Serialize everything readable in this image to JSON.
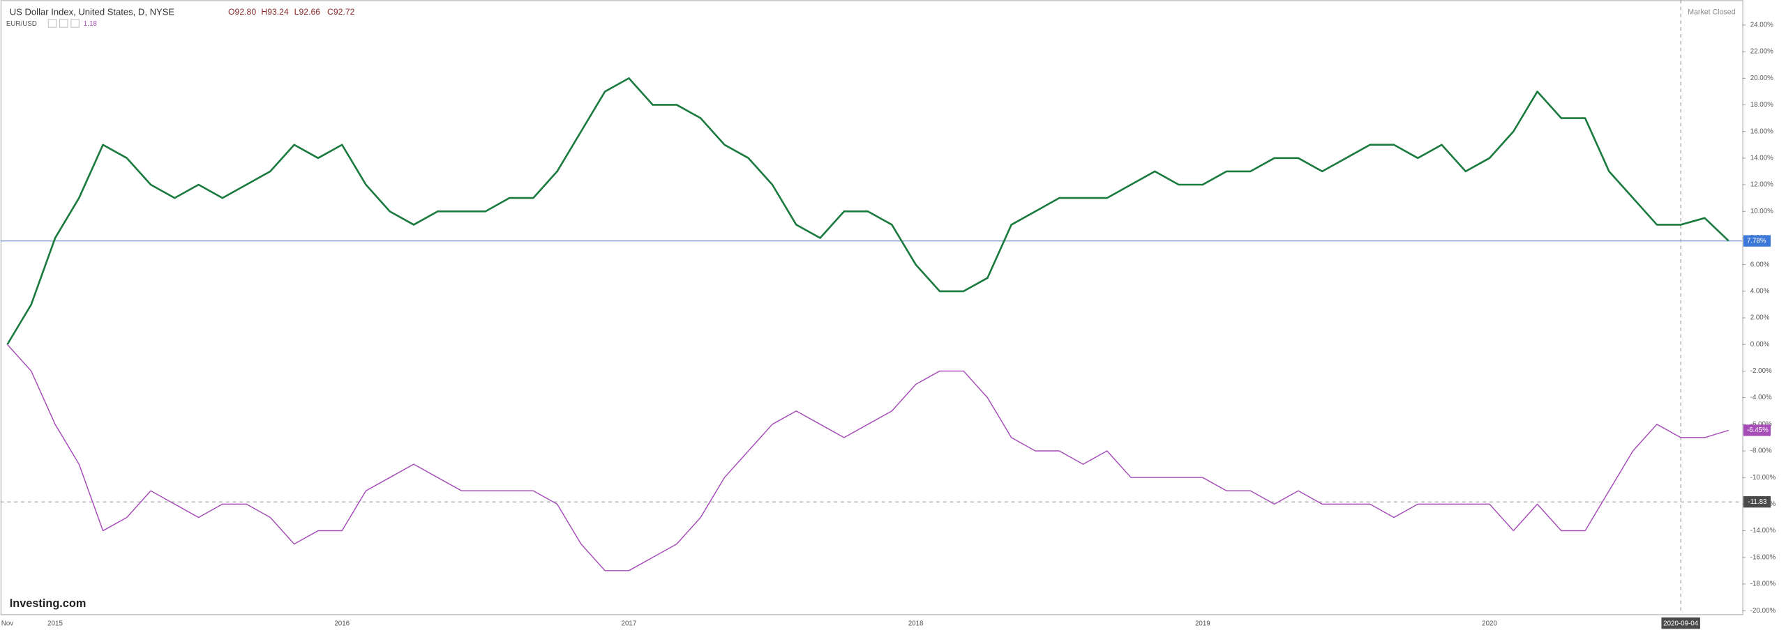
{
  "chart_data": {
    "type": "line",
    "status": "Market Closed",
    "watermark": "Investing.com",
    "categories": [
      "Nov",
      null,
      "2015",
      null,
      null,
      null,
      null,
      null,
      null,
      null,
      null,
      null,
      null,
      null,
      "2016",
      null,
      null,
      null,
      null,
      null,
      null,
      null,
      null,
      null,
      null,
      null,
      "2017",
      null,
      null,
      null,
      null,
      null,
      null,
      null,
      null,
      null,
      null,
      null,
      "2018",
      null,
      null,
      null,
      null,
      null,
      null,
      null,
      null,
      null,
      null,
      null,
      "2019",
      null,
      null,
      null,
      null,
      null,
      null,
      null,
      null,
      null,
      null,
      null,
      "2020",
      null,
      null,
      null,
      null,
      null,
      null,
      null,
      "2020-09-04",
      null,
      null
    ],
    "series": [
      {
        "name": "US Dollar Index, United States, D, NYSE",
        "color": "#1b7a3e",
        "ohlc": [
          "O92.80",
          "H93.24",
          "L92.66",
          "C92.72"
        ],
        "last_value_label": "7.78%",
        "values": [
          0,
          3,
          8,
          11,
          15,
          14,
          12,
          11,
          12,
          11,
          12,
          13,
          15,
          14,
          15,
          12,
          10,
          9,
          10,
          10,
          10,
          11,
          11,
          13,
          16,
          19,
          20,
          18,
          18,
          17,
          15,
          14,
          12,
          9,
          8,
          10,
          10,
          9,
          6,
          4,
          4,
          5,
          9,
          10,
          11,
          11,
          11,
          12,
          13,
          12,
          12,
          13,
          13,
          14,
          14,
          13,
          14,
          15,
          15,
          14,
          15,
          13,
          14,
          16,
          19,
          17,
          17,
          13,
          11,
          9,
          9,
          9.5,
          7.78
        ]
      },
      {
        "name": "EUR/USD",
        "color": "#a64db8",
        "quote": "1.18",
        "last_value_label": "-6.45%",
        "values": [
          0,
          -2,
          -6,
          -9,
          -14,
          -13,
          -11,
          -12,
          -13,
          -12,
          -12,
          -13,
          -15,
          -14,
          -14,
          -11,
          -10,
          -9,
          -10,
          -11,
          -11,
          -11,
          -11,
          -12,
          -15,
          -17,
          -17,
          -16,
          -15,
          -13,
          -10,
          -8,
          -6,
          -5,
          -6,
          -7,
          -6,
          -5,
          -3,
          -2,
          -2,
          -4,
          -7,
          -8,
          -8,
          -9,
          -8,
          -10,
          -10,
          -10,
          -10,
          -11,
          -11,
          -12,
          -11,
          -12,
          -12,
          -12,
          -13,
          -12,
          -12,
          -12,
          -12,
          -14,
          -12,
          -14,
          -14,
          -11,
          -8,
          -6,
          -7,
          -7,
          -6.45
        ]
      }
    ],
    "crosshair": -11.83,
    "ylim": [
      -20.26,
      25.88
    ],
    "yticks": [
      {
        "value": -20,
        "label": "-20.00%"
      },
      {
        "value": -18,
        "label": "-18.00%"
      },
      {
        "value": -16,
        "label": "-16.00%"
      },
      {
        "value": -14,
        "label": "-14.00%"
      },
      {
        "value": -12,
        "label": "-12.00%"
      },
      {
        "value": -10,
        "label": "-10.00%"
      },
      {
        "value": -8,
        "label": "-8.00%"
      },
      {
        "value": -6,
        "label": "-6.00%"
      },
      {
        "value": -4,
        "label": "-4.00%"
      },
      {
        "value": -2,
        "label": "-2.00%"
      },
      {
        "value": 0,
        "label": "0.00%"
      },
      {
        "value": 2,
        "label": "2.00%"
      },
      {
        "value": 4,
        "label": "4.00%"
      },
      {
        "value": 6,
        "label": "6.00%"
      },
      {
        "value": 8,
        "label": "8.00%"
      },
      {
        "value": 10,
        "label": "10.00%"
      },
      {
        "value": 12,
        "label": "12.00%"
      },
      {
        "value": 14,
        "label": "14.00%"
      },
      {
        "value": 16,
        "label": "16.00%"
      },
      {
        "value": 18,
        "label": "18.00%"
      },
      {
        "value": 20,
        "label": "20.00%"
      },
      {
        "value": 22,
        "label": "22.00%"
      },
      {
        "value": 24,
        "label": "24.00%"
      }
    ],
    "grid": false
  }
}
